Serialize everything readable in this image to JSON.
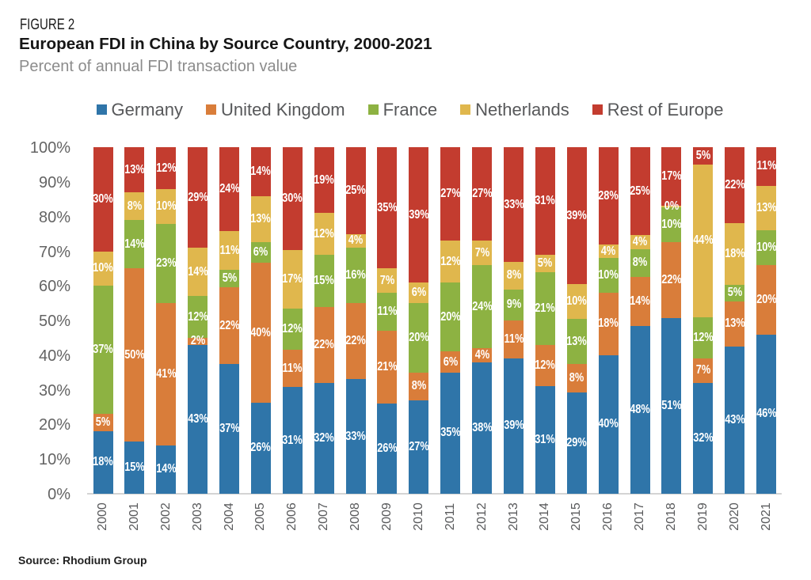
{
  "header": {
    "figure_label": "FIGURE 2",
    "title": "European FDI in China by Source Country, 2000-2021",
    "subtitle": "Percent of annual FDI transaction value"
  },
  "chart_data": {
    "type": "bar",
    "stacked": true,
    "title": "European FDI in China by Source Country, 2000-2021",
    "xlabel": "",
    "ylabel": "Percent of annual FDI transaction value",
    "unit": "%",
    "grid": false,
    "legend_position": "top",
    "bar_label_style": "white bold percent centered in each segment",
    "categories": [
      "2000",
      "2001",
      "2002",
      "2003",
      "2004",
      "2005",
      "2006",
      "2007",
      "2008",
      "2009",
      "2010",
      "2011",
      "2012",
      "2013",
      "2014",
      "2015",
      "2016",
      "2017",
      "2018",
      "2019",
      "2020",
      "2021"
    ],
    "series": [
      {
        "name": "Germany",
        "color": "#2F75A9",
        "values": [
          18,
          15,
          14,
          43,
          37,
          26,
          31,
          32,
          33,
          26,
          27,
          35,
          38,
          39,
          31,
          29,
          40,
          48,
          51,
          32,
          43,
          46
        ]
      },
      {
        "name": "United Kingdom",
        "color": "#D97D3A",
        "values": [
          5,
          50,
          41,
          2,
          22,
          40,
          11,
          22,
          22,
          21,
          8,
          6,
          4,
          11,
          12,
          8,
          18,
          14,
          22,
          7,
          13,
          20
        ]
      },
      {
        "name": "France",
        "color": "#8DB242",
        "values": [
          37,
          14,
          23,
          12,
          5,
          6,
          12,
          15,
          16,
          11,
          20,
          20,
          24,
          9,
          21,
          13,
          10,
          8,
          10,
          12,
          5,
          10
        ]
      },
      {
        "name": "Netherlands",
        "color": "#E0B74D",
        "values": [
          10,
          8,
          10,
          14,
          11,
          13,
          17,
          12,
          4,
          7,
          6,
          12,
          7,
          8,
          5,
          10,
          4,
          4,
          0,
          44,
          18,
          13
        ]
      },
      {
        "name": "Rest of Europe",
        "color": "#C33C2F",
        "values": [
          30,
          13,
          12,
          29,
          24,
          14,
          30,
          19,
          25,
          35,
          39,
          27,
          27,
          33,
          31,
          39,
          28,
          25,
          17,
          5,
          22,
          11
        ]
      }
    ],
    "y_axis": {
      "min": 0,
      "max": 100,
      "step": 10,
      "tick_suffix": "%",
      "ticks": [
        "0%",
        "10%",
        "20%",
        "30%",
        "40%",
        "50%",
        "60%",
        "70%",
        "80%",
        "90%",
        "100%"
      ]
    }
  },
  "source": {
    "text": "Source: Rhodium Group"
  }
}
